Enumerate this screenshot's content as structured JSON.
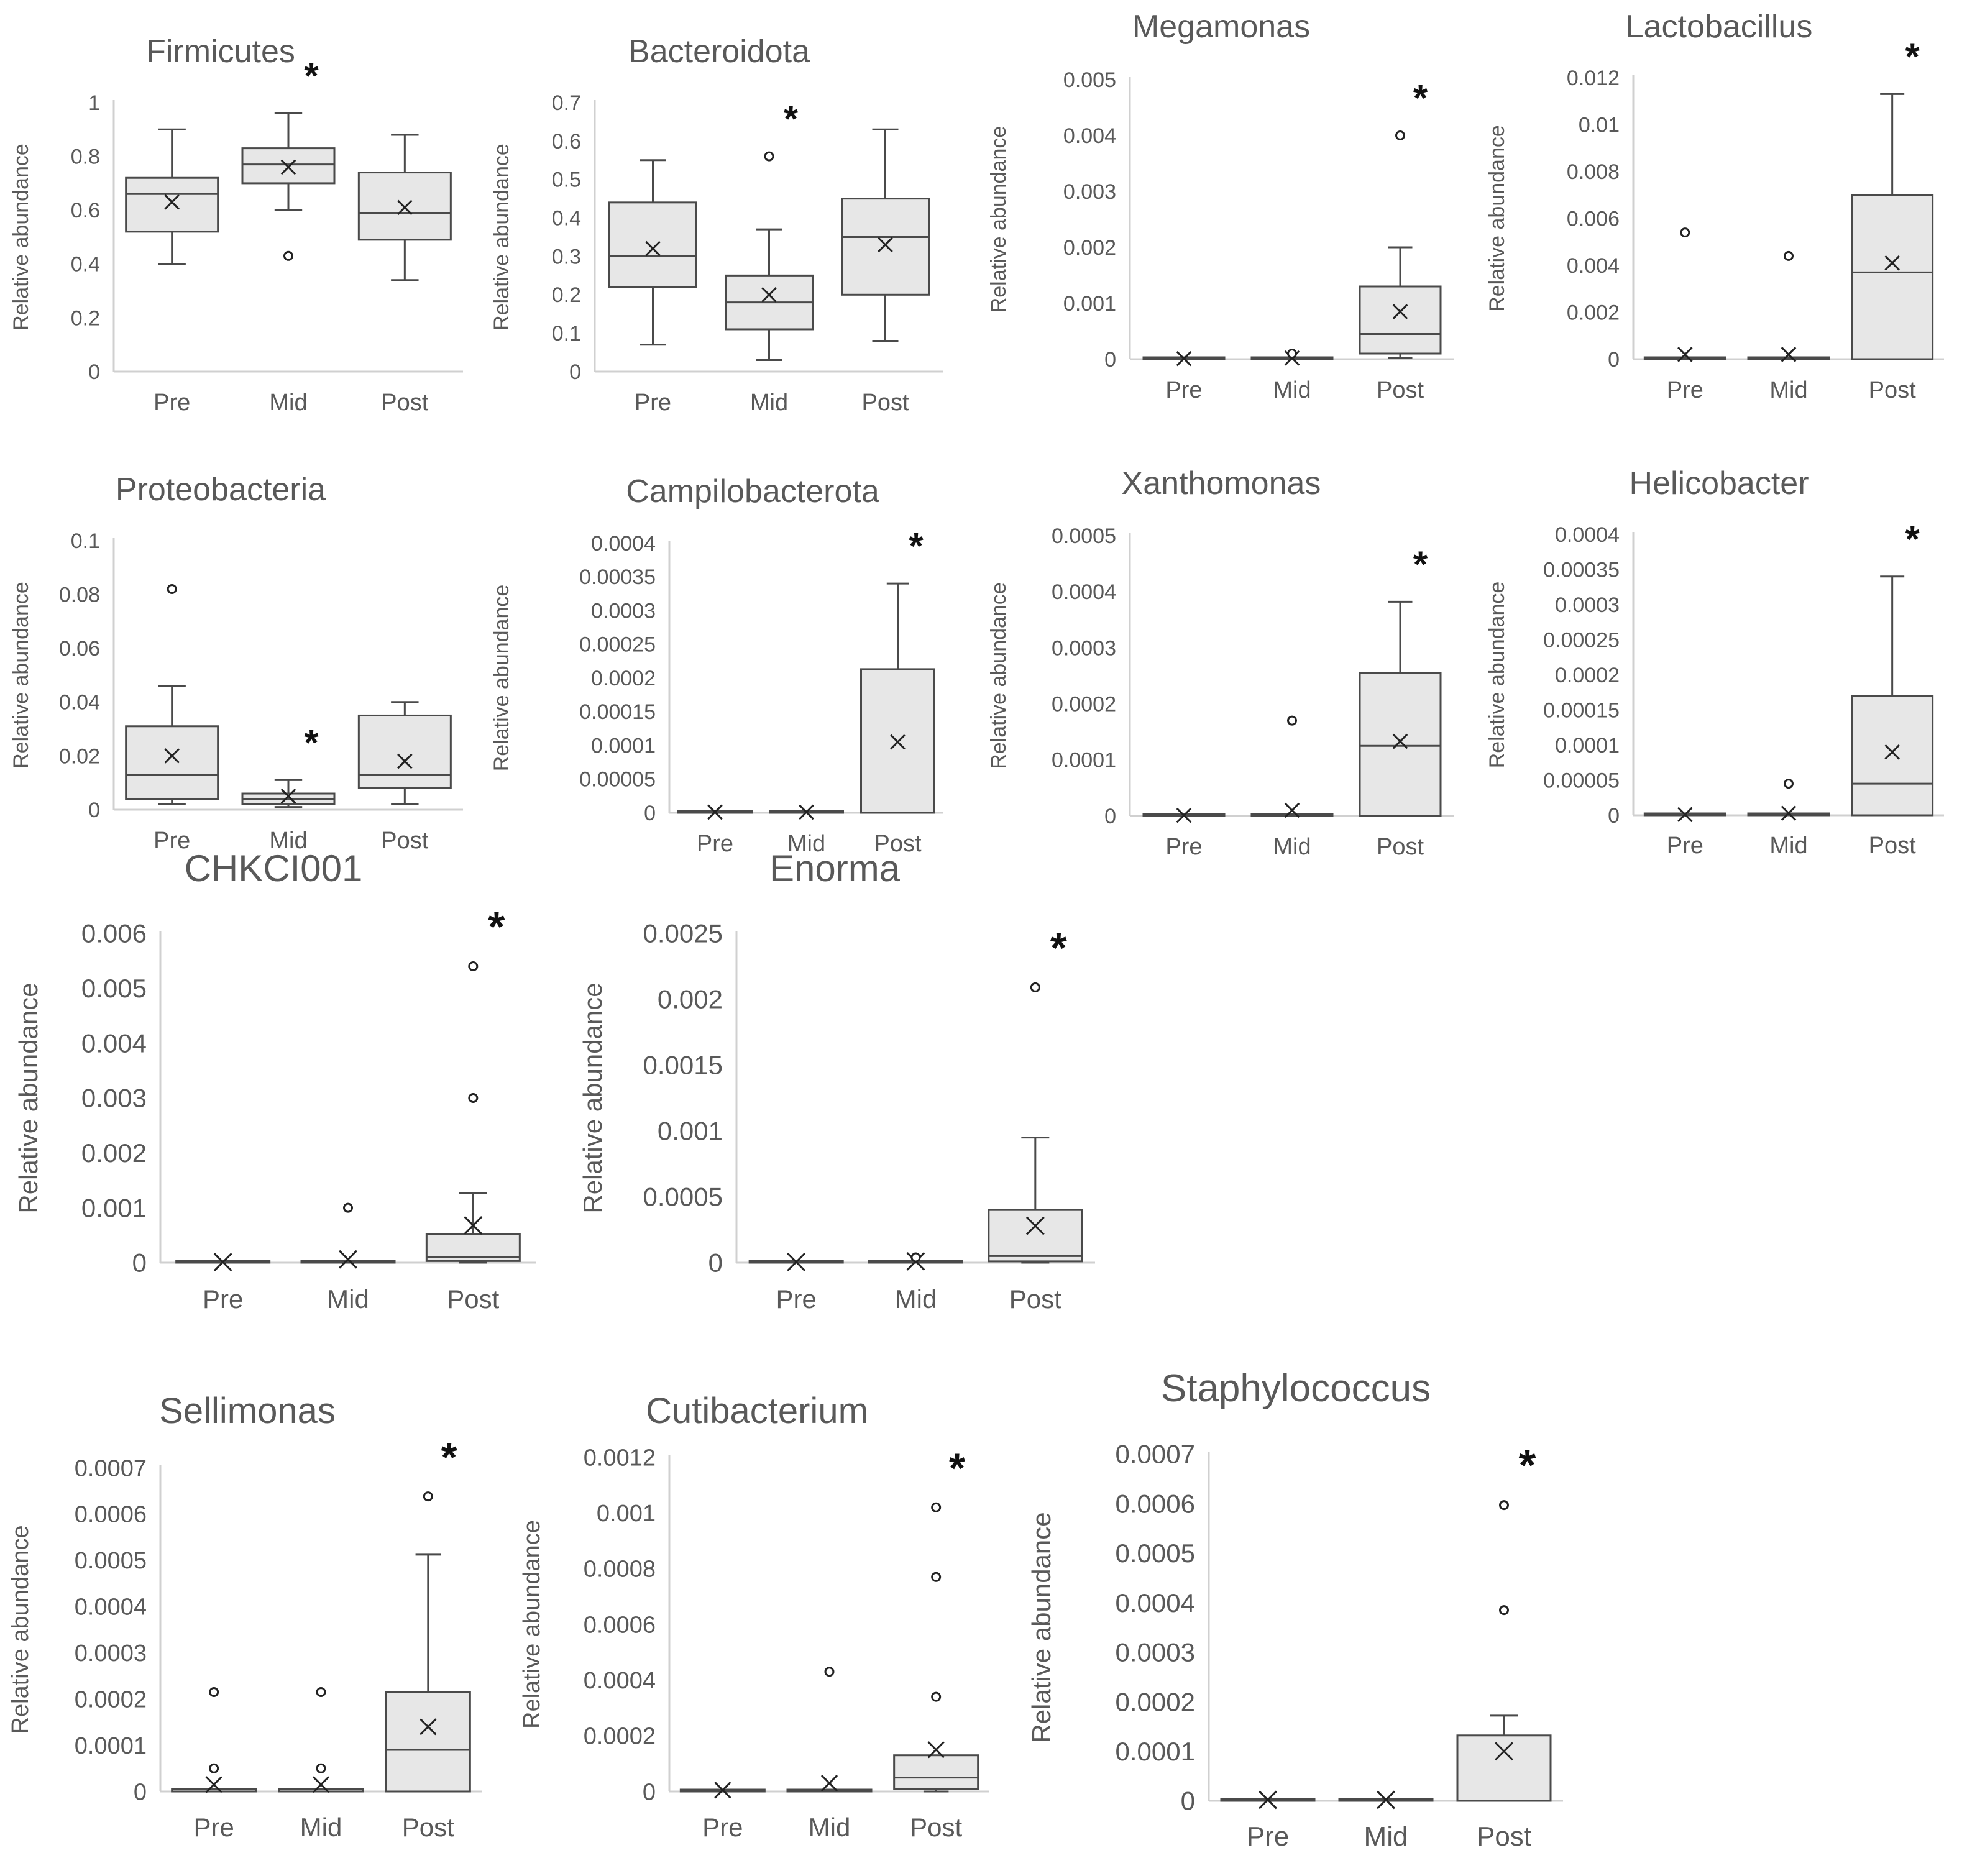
{
  "figure": {
    "background": "#ffffff",
    "box_fill": "#e7e7e7",
    "line_color": "#4a4a4a",
    "axis_color": "#d0d0d0",
    "text_color": "#595959",
    "significance_mark": "*"
  },
  "chart_data": [
    {
      "id": "firmicutes",
      "type": "box",
      "title": "Firmicutes",
      "ylabel": "Relative abundance",
      "categories": [
        "Pre",
        "Mid",
        "Post"
      ],
      "y_ticks": [
        "0",
        "0.2",
        "0.4",
        "0.6",
        "0.8",
        "1"
      ],
      "ylim": [
        0,
        1
      ],
      "significant": "Mid",
      "groups": [
        {
          "name": "Pre",
          "min": 0.4,
          "q1": 0.52,
          "median": 0.66,
          "q3": 0.72,
          "max": 0.9,
          "mean": 0.63,
          "outliers": []
        },
        {
          "name": "Mid",
          "min": 0.6,
          "q1": 0.7,
          "median": 0.77,
          "q3": 0.83,
          "max": 0.96,
          "mean": 0.76,
          "outliers": [
            0.43
          ]
        },
        {
          "name": "Post",
          "min": 0.34,
          "q1": 0.49,
          "median": 0.59,
          "q3": 0.74,
          "max": 0.88,
          "mean": 0.61,
          "outliers": []
        }
      ]
    },
    {
      "id": "bacteroidota",
      "type": "box",
      "title": "Bacteroidota",
      "ylabel": "Relative abundance",
      "categories": [
        "Pre",
        "Mid",
        "Post"
      ],
      "y_ticks": [
        "0",
        "0.1",
        "0.2",
        "0.3",
        "0.4",
        "0.5",
        "0.6",
        "0.7"
      ],
      "ylim": [
        0,
        0.7
      ],
      "significant": "Mid",
      "groups": [
        {
          "name": "Pre",
          "min": 0.07,
          "q1": 0.22,
          "median": 0.3,
          "q3": 0.44,
          "max": 0.55,
          "mean": 0.32,
          "outliers": []
        },
        {
          "name": "Mid",
          "min": 0.03,
          "q1": 0.11,
          "median": 0.18,
          "q3": 0.25,
          "max": 0.37,
          "mean": 0.2,
          "outliers": [
            0.56
          ]
        },
        {
          "name": "Post",
          "min": 0.08,
          "q1": 0.2,
          "median": 0.35,
          "q3": 0.45,
          "max": 0.63,
          "mean": 0.33,
          "outliers": []
        }
      ]
    },
    {
      "id": "megamonas",
      "type": "box",
      "title": "Megamonas",
      "ylabel": "Relative abundance",
      "categories": [
        "Pre",
        "Mid",
        "Post"
      ],
      "y_ticks": [
        "0",
        "0.001",
        "0.002",
        "0.003",
        "0.004",
        "0.005"
      ],
      "ylim": [
        0,
        0.005
      ],
      "significant": "Post",
      "groups": [
        {
          "name": "Pre",
          "min": 0,
          "q1": 0,
          "median": 0,
          "q3": 2e-05,
          "max": 2e-05,
          "mean": 1e-05,
          "outliers": []
        },
        {
          "name": "Mid",
          "min": 0,
          "q1": 0,
          "median": 0,
          "q3": 2e-05,
          "max": 2e-05,
          "mean": 2e-05,
          "outliers": [
            0.0001
          ]
        },
        {
          "name": "Post",
          "min": 2e-05,
          "q1": 0.0001,
          "median": 0.00045,
          "q3": 0.0013,
          "max": 0.002,
          "mean": 0.00085,
          "outliers": [
            0.004
          ]
        }
      ]
    },
    {
      "id": "lactobacillus",
      "type": "box",
      "title": "Lactobacillus",
      "ylabel": "Relative abundance",
      "categories": [
        "Pre",
        "Mid",
        "Post"
      ],
      "y_ticks": [
        "0",
        "0.002",
        "0.004",
        "0.006",
        "0.008",
        "0.01",
        "0.012"
      ],
      "ylim": [
        0,
        0.012
      ],
      "significant": "Post",
      "groups": [
        {
          "name": "Pre",
          "min": 0,
          "q1": 0,
          "median": 0,
          "q3": 5e-05,
          "max": 5e-05,
          "mean": 0.0002,
          "outliers": [
            0.0054
          ]
        },
        {
          "name": "Mid",
          "min": 0,
          "q1": 0,
          "median": 0,
          "q3": 5e-05,
          "max": 5e-05,
          "mean": 0.0002,
          "outliers": [
            0.0044
          ]
        },
        {
          "name": "Post",
          "min": 0,
          "q1": 0,
          "median": 0.0037,
          "q3": 0.007,
          "max": 0.0113,
          "mean": 0.0041,
          "outliers": []
        }
      ]
    },
    {
      "id": "proteobacteria",
      "type": "box",
      "title": "Proteobacteria",
      "ylabel": "Relative abundance",
      "categories": [
        "Pre",
        "Mid",
        "Post"
      ],
      "y_ticks": [
        "0",
        "0.02",
        "0.04",
        "0.06",
        "0.08",
        "0.1"
      ],
      "ylim": [
        0,
        0.1
      ],
      "significant": "Mid",
      "groups": [
        {
          "name": "Pre",
          "min": 0.002,
          "q1": 0.004,
          "median": 0.013,
          "q3": 0.031,
          "max": 0.046,
          "mean": 0.02,
          "outliers": [
            0.082
          ]
        },
        {
          "name": "Mid",
          "min": 0.001,
          "q1": 0.002,
          "median": 0.004,
          "q3": 0.006,
          "max": 0.011,
          "mean": 0.005,
          "outliers": []
        },
        {
          "name": "Post",
          "min": 0.002,
          "q1": 0.008,
          "median": 0.013,
          "q3": 0.035,
          "max": 0.04,
          "mean": 0.018,
          "outliers": []
        }
      ]
    },
    {
      "id": "campilobacterota",
      "type": "box",
      "title": "Campilobacterota",
      "ylabel": "Relative abundance",
      "categories": [
        "Pre",
        "Mid",
        "Post"
      ],
      "y_ticks": [
        "0",
        "0.00005",
        "0.0001",
        "0.00015",
        "0.0002",
        "0.00025",
        "0.0003",
        "0.00035",
        "0.0004"
      ],
      "ylim": [
        0,
        0.0004
      ],
      "significant": "Post",
      "groups": [
        {
          "name": "Pre",
          "min": 0,
          "q1": 0,
          "median": 0,
          "q3": 2e-06,
          "max": 2e-06,
          "mean": 1e-06,
          "outliers": []
        },
        {
          "name": "Mid",
          "min": 0,
          "q1": 0,
          "median": 0,
          "q3": 2e-06,
          "max": 2e-06,
          "mean": 1e-06,
          "outliers": []
        },
        {
          "name": "Post",
          "min": 0,
          "q1": 0,
          "median": 0,
          "q3": 0.000213,
          "max": 0.00034,
          "mean": 0.000105,
          "outliers": []
        }
      ]
    },
    {
      "id": "xanthomonas",
      "type": "box",
      "title": "Xanthomonas",
      "ylabel": "Relative abundance",
      "categories": [
        "Pre",
        "Mid",
        "Post"
      ],
      "y_ticks": [
        "0",
        "0.0001",
        "0.0002",
        "0.0003",
        "0.0004",
        "0.0005"
      ],
      "ylim": [
        0,
        0.0005
      ],
      "significant": "Post",
      "groups": [
        {
          "name": "Pre",
          "min": 0,
          "q1": 0,
          "median": 0,
          "q3": 2e-06,
          "max": 2e-06,
          "mean": 1e-06,
          "outliers": []
        },
        {
          "name": "Mid",
          "min": 0,
          "q1": 0,
          "median": 0,
          "q3": 2e-06,
          "max": 2e-06,
          "mean": 1e-05,
          "outliers": [
            0.00017
          ]
        },
        {
          "name": "Post",
          "min": 0,
          "q1": 0,
          "median": 0.000125,
          "q3": 0.000255,
          "max": 0.000382,
          "mean": 0.000133,
          "outliers": []
        }
      ]
    },
    {
      "id": "helicobacter",
      "type": "box",
      "title": "Helicobacter",
      "ylabel": "Relative abundance",
      "categories": [
        "Pre",
        "Mid",
        "Post"
      ],
      "y_ticks": [
        "0",
        "0.00005",
        "0.0001",
        "0.00015",
        "0.0002",
        "0.00025",
        "0.0003",
        "0.00035",
        "0.0004"
      ],
      "ylim": [
        0,
        0.0004
      ],
      "significant": "Post",
      "groups": [
        {
          "name": "Pre",
          "min": 0,
          "q1": 0,
          "median": 0,
          "q3": 2e-06,
          "max": 2e-06,
          "mean": 1e-06,
          "outliers": []
        },
        {
          "name": "Mid",
          "min": 0,
          "q1": 0,
          "median": 0,
          "q3": 2e-06,
          "max": 2e-06,
          "mean": 3e-06,
          "outliers": [
            4.5e-05
          ]
        },
        {
          "name": "Post",
          "min": 0,
          "q1": 0,
          "median": 4.5e-05,
          "q3": 0.00017,
          "max": 0.00034,
          "mean": 9e-05,
          "outliers": []
        }
      ]
    },
    {
      "id": "chkci001",
      "type": "box",
      "title": "CHKCI001",
      "ylabel": "Relative abundance",
      "categories": [
        "Pre",
        "Mid",
        "Post"
      ],
      "y_ticks": [
        "0",
        "0.001",
        "0.002",
        "0.003",
        "0.004",
        "0.005",
        "0.006"
      ],
      "ylim": [
        0,
        0.006
      ],
      "significant": "Post",
      "groups": [
        {
          "name": "Pre",
          "min": 0,
          "q1": 0,
          "median": 0,
          "q3": 3e-05,
          "max": 3e-05,
          "mean": 1e-05,
          "outliers": []
        },
        {
          "name": "Mid",
          "min": 0,
          "q1": 0,
          "median": 0,
          "q3": 3e-05,
          "max": 3e-05,
          "mean": 6e-05,
          "outliers": [
            0.001
          ]
        },
        {
          "name": "Post",
          "min": 0,
          "q1": 3e-05,
          "median": 0.0001,
          "q3": 0.00052,
          "max": 0.00127,
          "mean": 0.00068,
          "outliers": [
            0.003,
            0.0054
          ]
        }
      ]
    },
    {
      "id": "enorma",
      "type": "box",
      "title": "Enorma",
      "ylabel": "Relative abundance",
      "categories": [
        "Pre",
        "Mid",
        "Post"
      ],
      "y_ticks": [
        "0",
        "0.0005",
        "0.001",
        "0.0015",
        "0.002",
        "0.0025"
      ],
      "ylim": [
        0,
        0.0025
      ],
      "significant": "Post",
      "groups": [
        {
          "name": "Pre",
          "min": 0,
          "q1": 0,
          "median": 0,
          "q3": 1e-05,
          "max": 1e-05,
          "mean": 5e-06,
          "outliers": []
        },
        {
          "name": "Mid",
          "min": 0,
          "q1": 0,
          "median": 0,
          "q3": 1e-05,
          "max": 1e-05,
          "mean": 1e-05,
          "outliers": [
            4e-05
          ]
        },
        {
          "name": "Post",
          "min": 0,
          "q1": 1e-05,
          "median": 5e-05,
          "q3": 0.0004,
          "max": 0.00095,
          "mean": 0.00028,
          "outliers": [
            0.00209
          ]
        }
      ]
    },
    {
      "id": "sellimonas",
      "type": "box",
      "title": "Sellimonas",
      "ylabel": "Relative abundance",
      "categories": [
        "Pre",
        "Mid",
        "Post"
      ],
      "y_ticks": [
        "0",
        "0.0001",
        "0.0002",
        "0.0003",
        "0.0004",
        "0.0005",
        "0.0006",
        "0.0007"
      ],
      "ylim": [
        0,
        0.0007
      ],
      "significant": "Post",
      "groups": [
        {
          "name": "Pre",
          "min": 0,
          "q1": 0,
          "median": 0,
          "q3": 5e-06,
          "max": 5e-06,
          "mean": 1.5e-05,
          "outliers": [
            5e-05,
            0.000215
          ]
        },
        {
          "name": "Mid",
          "min": 0,
          "q1": 0,
          "median": 0,
          "q3": 5e-06,
          "max": 5e-06,
          "mean": 1.5e-05,
          "outliers": [
            5e-05,
            0.000215
          ]
        },
        {
          "name": "Post",
          "min": 0,
          "q1": 0,
          "median": 9e-05,
          "q3": 0.000215,
          "max": 0.000512,
          "mean": 0.00014,
          "outliers": [
            0.000638
          ]
        }
      ]
    },
    {
      "id": "cutibacterium",
      "type": "box",
      "title": "Cutibacterium",
      "ylabel": "Relative abundance",
      "categories": [
        "Pre",
        "Mid",
        "Post"
      ],
      "y_ticks": [
        "0",
        "0.0002",
        "0.0004",
        "0.0006",
        "0.0008",
        "0.001",
        "0.0012"
      ],
      "ylim": [
        0,
        0.0012
      ],
      "significant": "Post",
      "groups": [
        {
          "name": "Pre",
          "min": 0,
          "q1": 0,
          "median": 0,
          "q3": 5e-06,
          "max": 5e-06,
          "mean": 5e-06,
          "outliers": []
        },
        {
          "name": "Mid",
          "min": 0,
          "q1": 0,
          "median": 0,
          "q3": 5e-06,
          "max": 5e-06,
          "mean": 3e-05,
          "outliers": [
            0.00043
          ]
        },
        {
          "name": "Post",
          "min": 0,
          "q1": 1e-05,
          "median": 5e-05,
          "q3": 0.00013,
          "max": 0.00013,
          "mean": 0.00015,
          "outliers": [
            0.00034,
            0.00077,
            0.00102
          ]
        }
      ]
    },
    {
      "id": "staphylococcus",
      "type": "box",
      "title": "Staphylococcus",
      "ylabel": "Relative abundance",
      "categories": [
        "Pre",
        "Mid",
        "Post"
      ],
      "y_ticks": [
        "0",
        "0.0001",
        "0.0002",
        "0.0003",
        "0.0004",
        "0.0005",
        "0.0006",
        "0.0007"
      ],
      "ylim": [
        0,
        0.0007
      ],
      "significant": "Post",
      "groups": [
        {
          "name": "Pre",
          "min": 0,
          "q1": 0,
          "median": 0,
          "q3": 3e-06,
          "max": 3e-06,
          "mean": 2e-06,
          "outliers": []
        },
        {
          "name": "Mid",
          "min": 0,
          "q1": 0,
          "median": 0,
          "q3": 3e-06,
          "max": 3e-06,
          "mean": 2e-06,
          "outliers": []
        },
        {
          "name": "Post",
          "min": 0,
          "q1": 0,
          "median": 0,
          "q3": 0.000132,
          "max": 0.000172,
          "mean": 0.0001,
          "outliers": [
            0.000385,
            0.000597
          ]
        }
      ]
    }
  ]
}
